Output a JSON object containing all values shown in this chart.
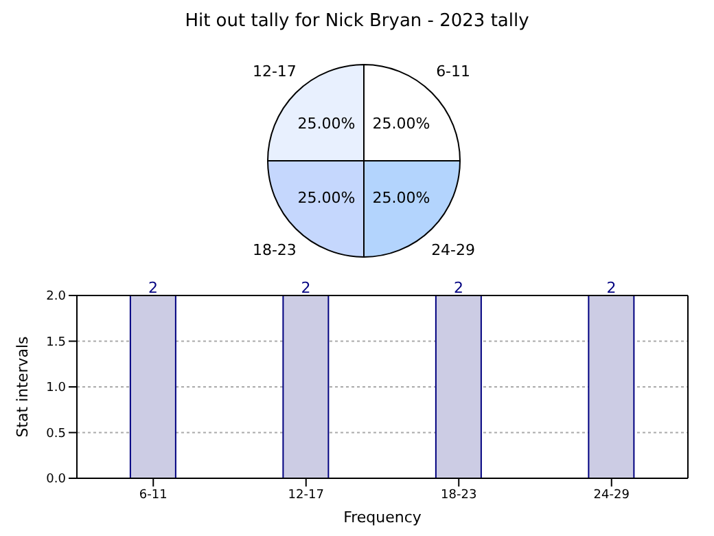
{
  "chart_data": [
    {
      "type": "pie",
      "title": "Hit out tally for Nick Bryan - 2023 tally",
      "categories": [
        "6-11",
        "12-17",
        "18-23",
        "24-29"
      ],
      "values": [
        25,
        25,
        25,
        25
      ],
      "colors": [
        "#ffffff",
        "#e8f0fe",
        "#c5d7fd",
        "#b3d4fd"
      ],
      "value_labels": [
        "25.00%",
        "25.00%",
        "25.00%",
        "25.00%"
      ]
    },
    {
      "type": "bar",
      "xlabel": "Frequency",
      "ylabel": "Stat intervals",
      "categories": [
        "6-11",
        "12-17",
        "18-23",
        "24-29"
      ],
      "values": [
        2,
        2,
        2,
        2
      ],
      "color": "#cccce4",
      "ylim": [
        0,
        2
      ],
      "yticks": [
        {
          "value": 0,
          "label": "0.0"
        },
        {
          "value": 0.5,
          "label": "0.5"
        },
        {
          "value": 1,
          "label": "1.0"
        },
        {
          "value": 1.5,
          "label": "1.5"
        },
        {
          "value": 2,
          "label": "2.0"
        }
      ],
      "grid": true,
      "data_labels": true
    }
  ]
}
